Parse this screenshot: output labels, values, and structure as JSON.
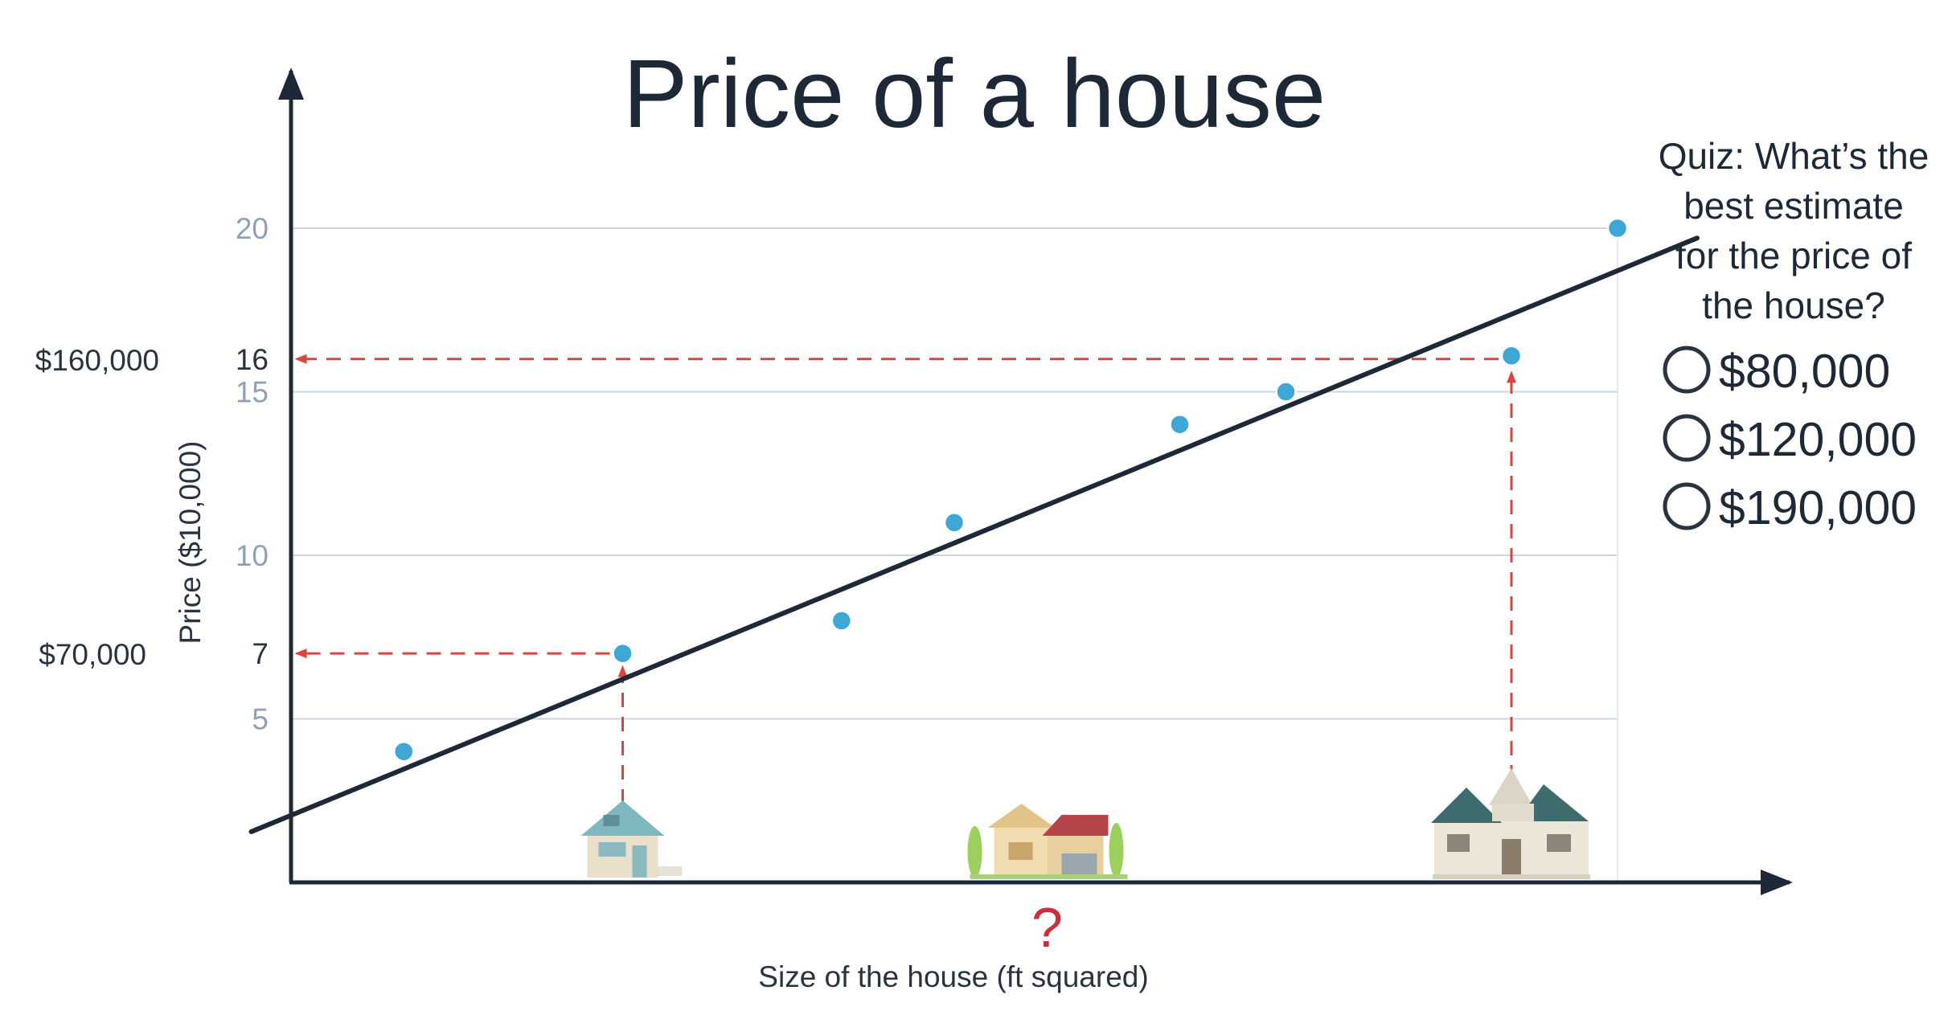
{
  "colors": {
    "text": "#1e2938",
    "axis": "#1e2938",
    "grid": "#c9d5e4",
    "tick_blue": "#8fa1b6",
    "point": "#3fa7d6",
    "trend_line": "#1e2938",
    "dashed_guides": "#d8463f",
    "question_mark": "#c9303c"
  },
  "chart_data": {
    "type": "scatter",
    "title": "Price of a house",
    "xlabel": "Size of the house (ft squared)",
    "ylabel": "Price ($10,000)",
    "ylim": [
      0,
      20
    ],
    "xlim": [
      0,
      10
    ],
    "grid": true,
    "yticks": [
      {
        "value": 5,
        "label": "5",
        "style": "blue"
      },
      {
        "value": 7,
        "label": "7",
        "style": "dark"
      },
      {
        "value": 10,
        "label": "10",
        "style": "blue"
      },
      {
        "value": 15,
        "label": "15",
        "style": "blue"
      },
      {
        "value": 16,
        "label": "16",
        "style": "dark"
      },
      {
        "value": 20,
        "label": "20",
        "style": "blue"
      }
    ],
    "gridlines": [
      5,
      10,
      15,
      20
    ],
    "points": [
      {
        "x": 0.85,
        "y": 4
      },
      {
        "x": 2.5,
        "y": 7
      },
      {
        "x": 4.15,
        "y": 8
      },
      {
        "x": 5.0,
        "y": 11
      },
      {
        "x": 6.7,
        "y": 14
      },
      {
        "x": 7.5,
        "y": 15
      },
      {
        "x": 9.2,
        "y": 16.1
      },
      {
        "x": 10.0,
        "y": 20
      }
    ],
    "trend_line": {
      "x1": -0.3,
      "y1": 1.55,
      "x2": 10.6,
      "y2": 19.7
    },
    "guides": [
      {
        "x": 2.5,
        "y": 7,
        "price_label": "$70,000"
      },
      {
        "x": 9.2,
        "y": 16,
        "price_label": "$160,000"
      }
    ],
    "question_x": 5.7,
    "question_label": "?",
    "houses": [
      {
        "icon": "small-house-icon",
        "x": 2.5
      },
      {
        "icon": "medium-house-icon",
        "x": 5.7
      },
      {
        "icon": "large-house-icon",
        "x": 9.2
      }
    ]
  },
  "quiz": {
    "lines": [
      "Quiz: What’s the",
      "best estimate",
      "for the price of",
      "the house?"
    ],
    "options": [
      {
        "label": "$80,000"
      },
      {
        "label": "$120,000"
      },
      {
        "label": "$190,000"
      }
    ]
  }
}
